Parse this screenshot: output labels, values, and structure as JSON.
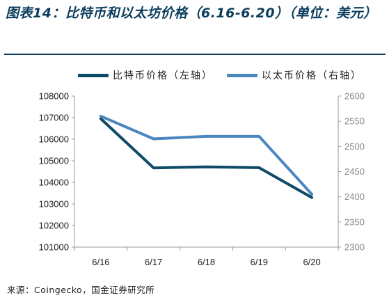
{
  "figure_title": "图表14：比特币和以太坊价格（6.16-6.20）（单位：美元）",
  "source_note": "来源：Coingecko，国金证券研究所",
  "colors": {
    "btc": "#0d4a66",
    "eth": "#4a86c0",
    "axis": "#999999",
    "left_ticks": "#222222",
    "right_ticks": "#888888",
    "rule": "#0b3d5c"
  },
  "chart_data": {
    "type": "line",
    "title": "",
    "categories": [
      "6/16",
      "6/17",
      "6/18",
      "6/19",
      "6/20"
    ],
    "legend_position": "top",
    "grid": false,
    "series": [
      {
        "name": "比特币价格（左轴）",
        "axis": "left",
        "values": [
          106950,
          104670,
          104720,
          104680,
          103300
        ]
      },
      {
        "name": "以太币价格（右轴）",
        "axis": "right",
        "values": [
          2560,
          2515,
          2520,
          2520,
          2405
        ]
      }
    ],
    "y_left": {
      "min": 101000,
      "max": 108000,
      "step": 1000,
      "ticks": [
        "101000",
        "102000",
        "103000",
        "104000",
        "105000",
        "106000",
        "107000",
        "108000"
      ]
    },
    "y_right": {
      "min": 2300,
      "max": 2600,
      "step": 50,
      "ticks": [
        "2300",
        "2350",
        "2400",
        "2450",
        "2500",
        "2550",
        "2600"
      ]
    }
  }
}
